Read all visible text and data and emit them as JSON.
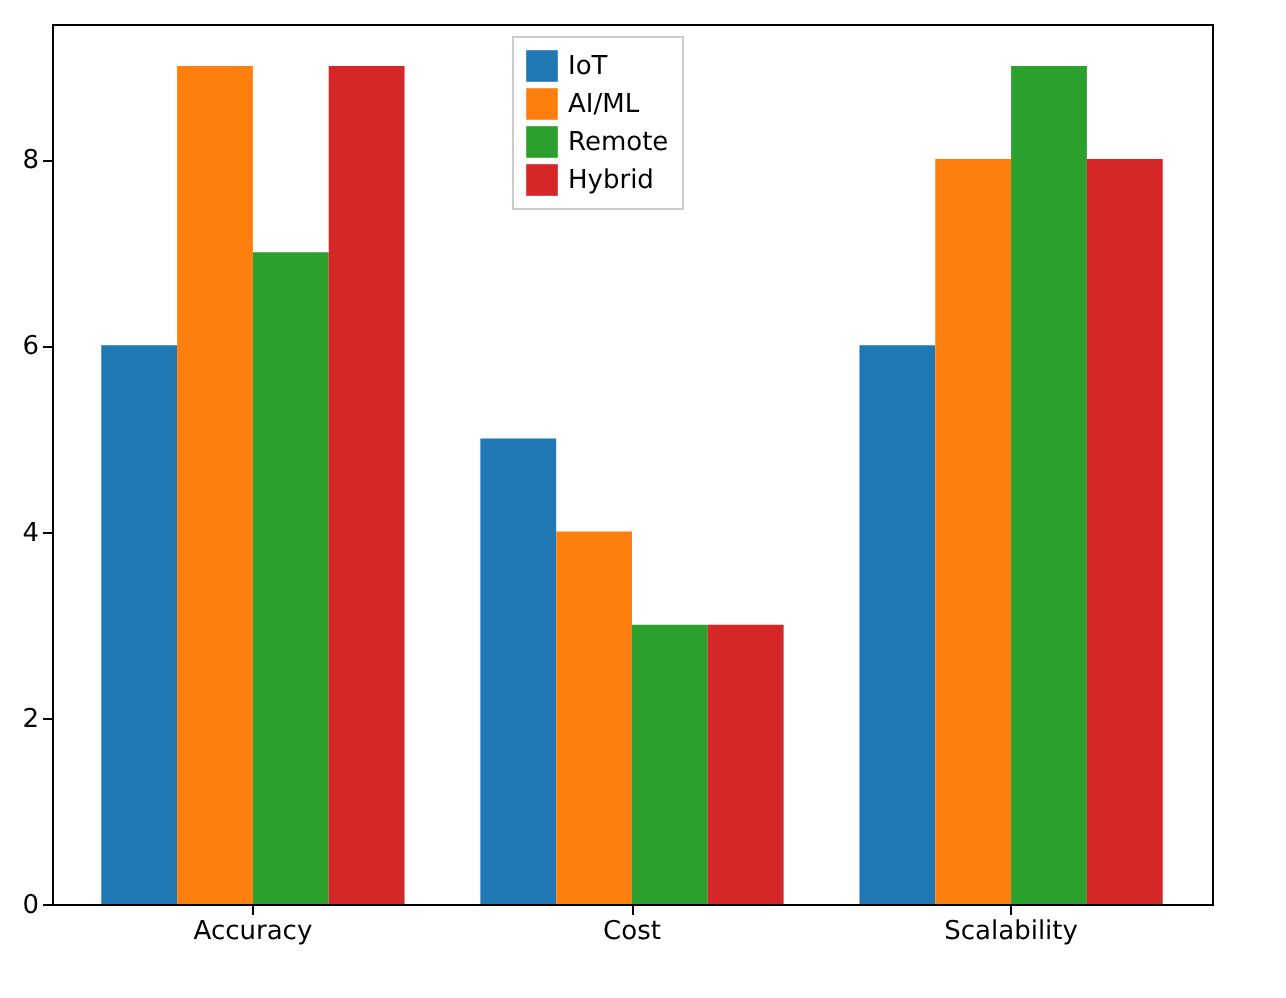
{
  "chart_data": {
    "type": "bar",
    "categories": [
      "Accuracy",
      "Cost",
      "Scalability"
    ],
    "series": [
      {
        "name": "IoT",
        "color": "#1f77b4",
        "values": [
          6,
          5,
          6
        ]
      },
      {
        "name": "AI/ML",
        "color": "#ff7f0e",
        "values": [
          9,
          4,
          8
        ]
      },
      {
        "name": "Remote",
        "color": "#2ca02c",
        "values": [
          7,
          3,
          9
        ]
      },
      {
        "name": "Hybrid",
        "color": "#d62728",
        "values": [
          9,
          3,
          8
        ]
      }
    ],
    "ylim": [
      0,
      9.45
    ],
    "yticks": [
      0,
      2,
      4,
      6,
      8
    ],
    "grid": false,
    "legend": "top"
  }
}
